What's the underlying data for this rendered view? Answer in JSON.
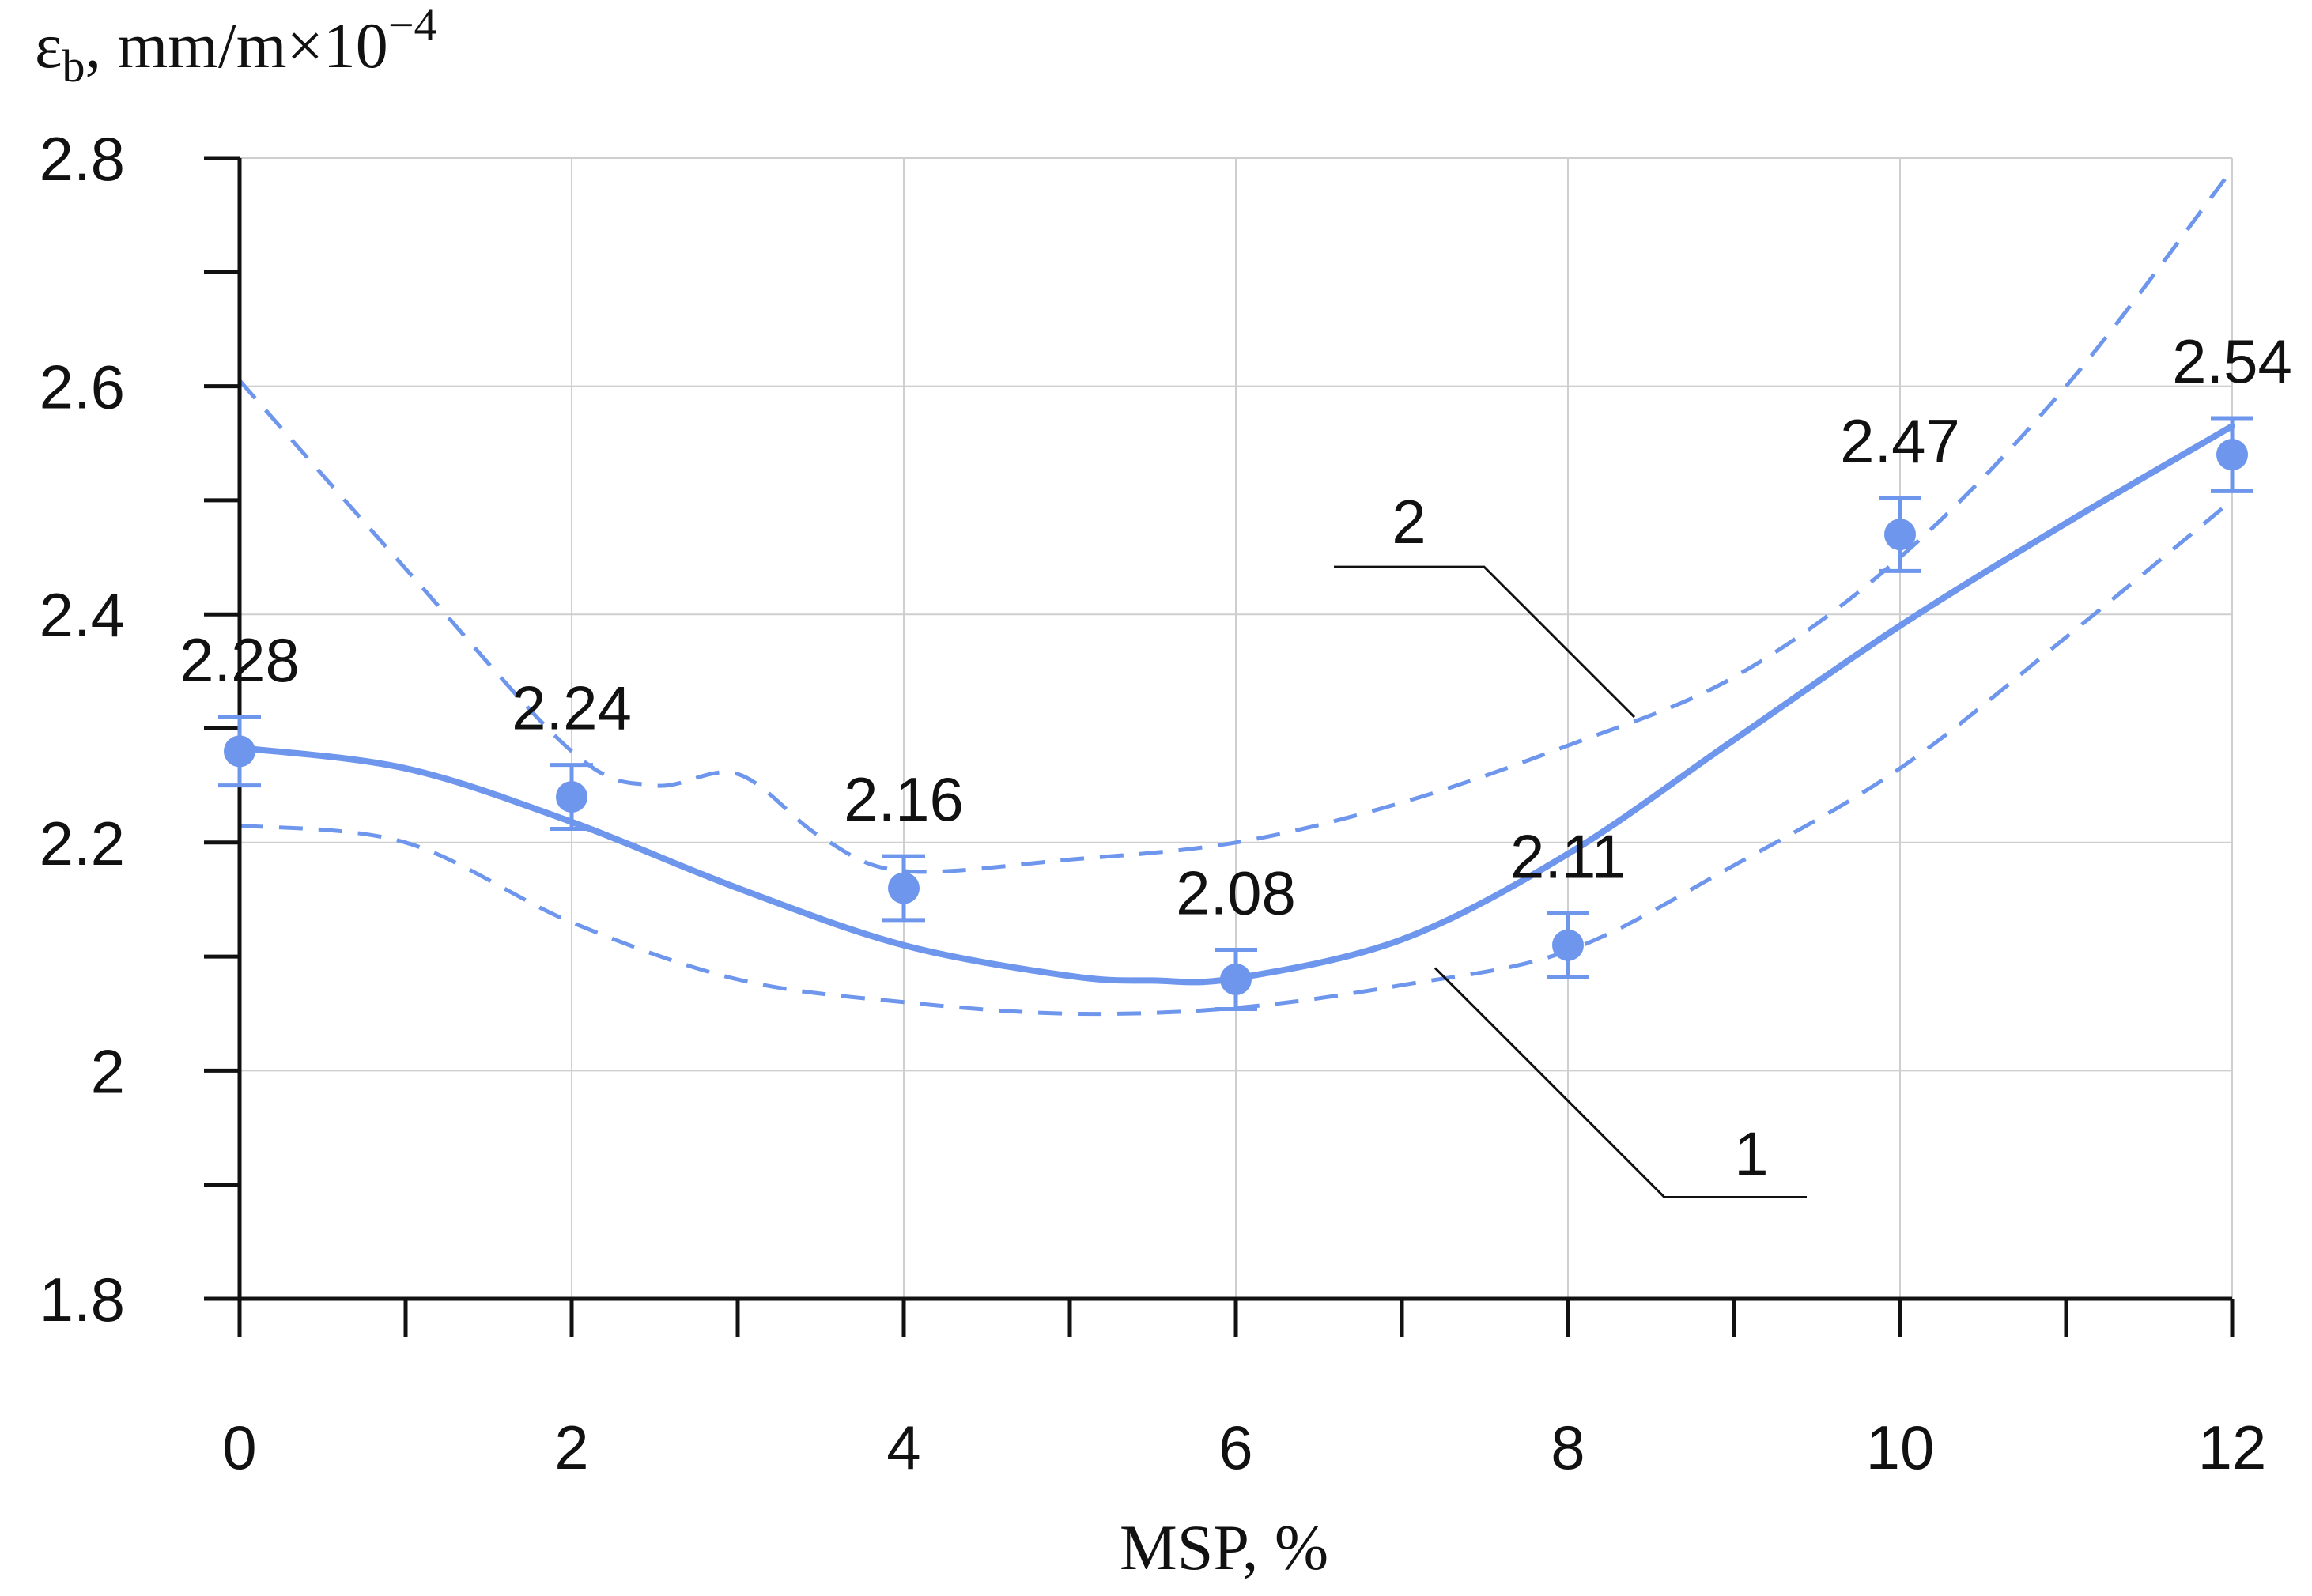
{
  "chart_data": {
    "type": "line",
    "title": "",
    "xlabel": "MSP, %",
    "ylabel": {
      "symbol": "ε",
      "subscript": "b",
      "unit": ", mm/m×10",
      "exponent": "−4"
    },
    "xlim": [
      0,
      12
    ],
    "ylim": [
      1.8,
      2.8
    ],
    "x_ticks": [
      0,
      2,
      4,
      6,
      8,
      10,
      12
    ],
    "x_tick_labels": [
      "0",
      "2",
      "4",
      "6",
      "8",
      "10",
      "12"
    ],
    "x_minor_ticks": [
      1,
      3,
      5,
      7,
      9,
      11
    ],
    "y_ticks": [
      1.8,
      2.0,
      2.2,
      2.4,
      2.6,
      2.8
    ],
    "y_tick_labels": [
      "1.8",
      "2",
      "2.2",
      "2.4",
      "2.6",
      "2.8"
    ],
    "y_minor_ticks": [
      1.9,
      2.1,
      2.3,
      2.5,
      2.7
    ],
    "grid": true,
    "color": "#6e96ec",
    "points": {
      "x": [
        0,
        2,
        4,
        6,
        8,
        10,
        12
      ],
      "y": [
        2.28,
        2.24,
        2.16,
        2.08,
        2.11,
        2.47,
        2.54
      ],
      "labels": [
        "2.28",
        "2.24",
        "2.16",
        "2.08",
        "2.11",
        "2.47",
        "2.54"
      ],
      "error": [
        0.03,
        0.028,
        0.028,
        0.026,
        0.028,
        0.032,
        0.032
      ]
    },
    "fit_curve": {
      "name": "1",
      "x": [
        0,
        1,
        2,
        3,
        4,
        5,
        5.5,
        6,
        7,
        8,
        9,
        10,
        11,
        12
      ],
      "y": [
        2.283,
        2.265,
        2.218,
        2.16,
        2.11,
        2.083,
        2.079,
        2.081,
        2.115,
        2.19,
        2.29,
        2.39,
        2.48,
        2.565
      ]
    },
    "confidence_upper": {
      "name": "2",
      "x": [
        0,
        1,
        2,
        2.5,
        3,
        3.5,
        4,
        5,
        6,
        7,
        8,
        9,
        10,
        11,
        12
      ],
      "y": [
        2.605,
        2.44,
        2.28,
        2.25,
        2.26,
        2.205,
        2.175,
        2.185,
        2.2,
        2.235,
        2.285,
        2.345,
        2.45,
        2.6,
        2.79
      ]
    },
    "confidence_lower": {
      "x": [
        0,
        1,
        2,
        3,
        4,
        5,
        6,
        7,
        8,
        9,
        10,
        11,
        12
      ],
      "y": [
        2.215,
        2.2,
        2.13,
        2.08,
        2.06,
        2.05,
        2.055,
        2.075,
        2.105,
        2.18,
        2.265,
        2.38,
        2.5
      ]
    },
    "callouts": [
      {
        "text": "2",
        "x": 8.4,
        "y": 2.31
      },
      {
        "text": "1",
        "x": 7.2,
        "y": 2.09
      }
    ]
  }
}
